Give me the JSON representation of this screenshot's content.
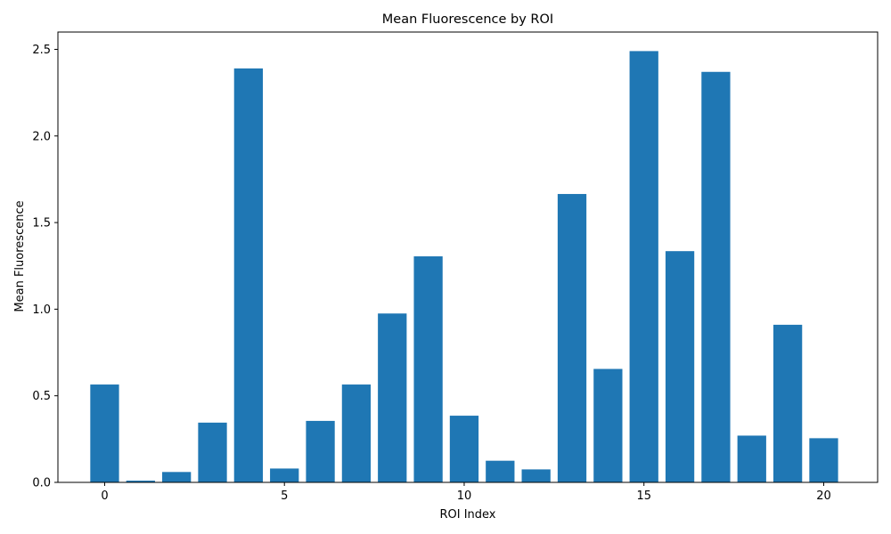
{
  "chart_data": {
    "type": "bar",
    "title": "Mean Fluorescence by ROI",
    "xlabel": "ROI Index",
    "ylabel": "Mean Fluorescence",
    "x": [
      0,
      1,
      2,
      3,
      4,
      5,
      6,
      7,
      8,
      9,
      10,
      11,
      12,
      13,
      14,
      15,
      16,
      17,
      18,
      19,
      20
    ],
    "values": [
      0.565,
      0.01,
      0.06,
      0.345,
      2.39,
      0.08,
      0.355,
      0.565,
      0.975,
      1.305,
      0.385,
      0.125,
      0.075,
      1.665,
      0.655,
      2.49,
      1.335,
      2.37,
      0.27,
      0.91,
      0.255
    ],
    "xlim": [
      -1.3,
      21.5
    ],
    "ylim": [
      0,
      2.6
    ],
    "xticks": [
      0,
      5,
      10,
      15,
      20
    ],
    "yticks": [
      0.0,
      0.5,
      1.0,
      1.5,
      2.0,
      2.5
    ],
    "ytick_labels": [
      "0.0",
      "0.5",
      "1.0",
      "1.5",
      "2.0",
      "2.5"
    ],
    "grid": false,
    "bar_color": "#1f77b4"
  }
}
